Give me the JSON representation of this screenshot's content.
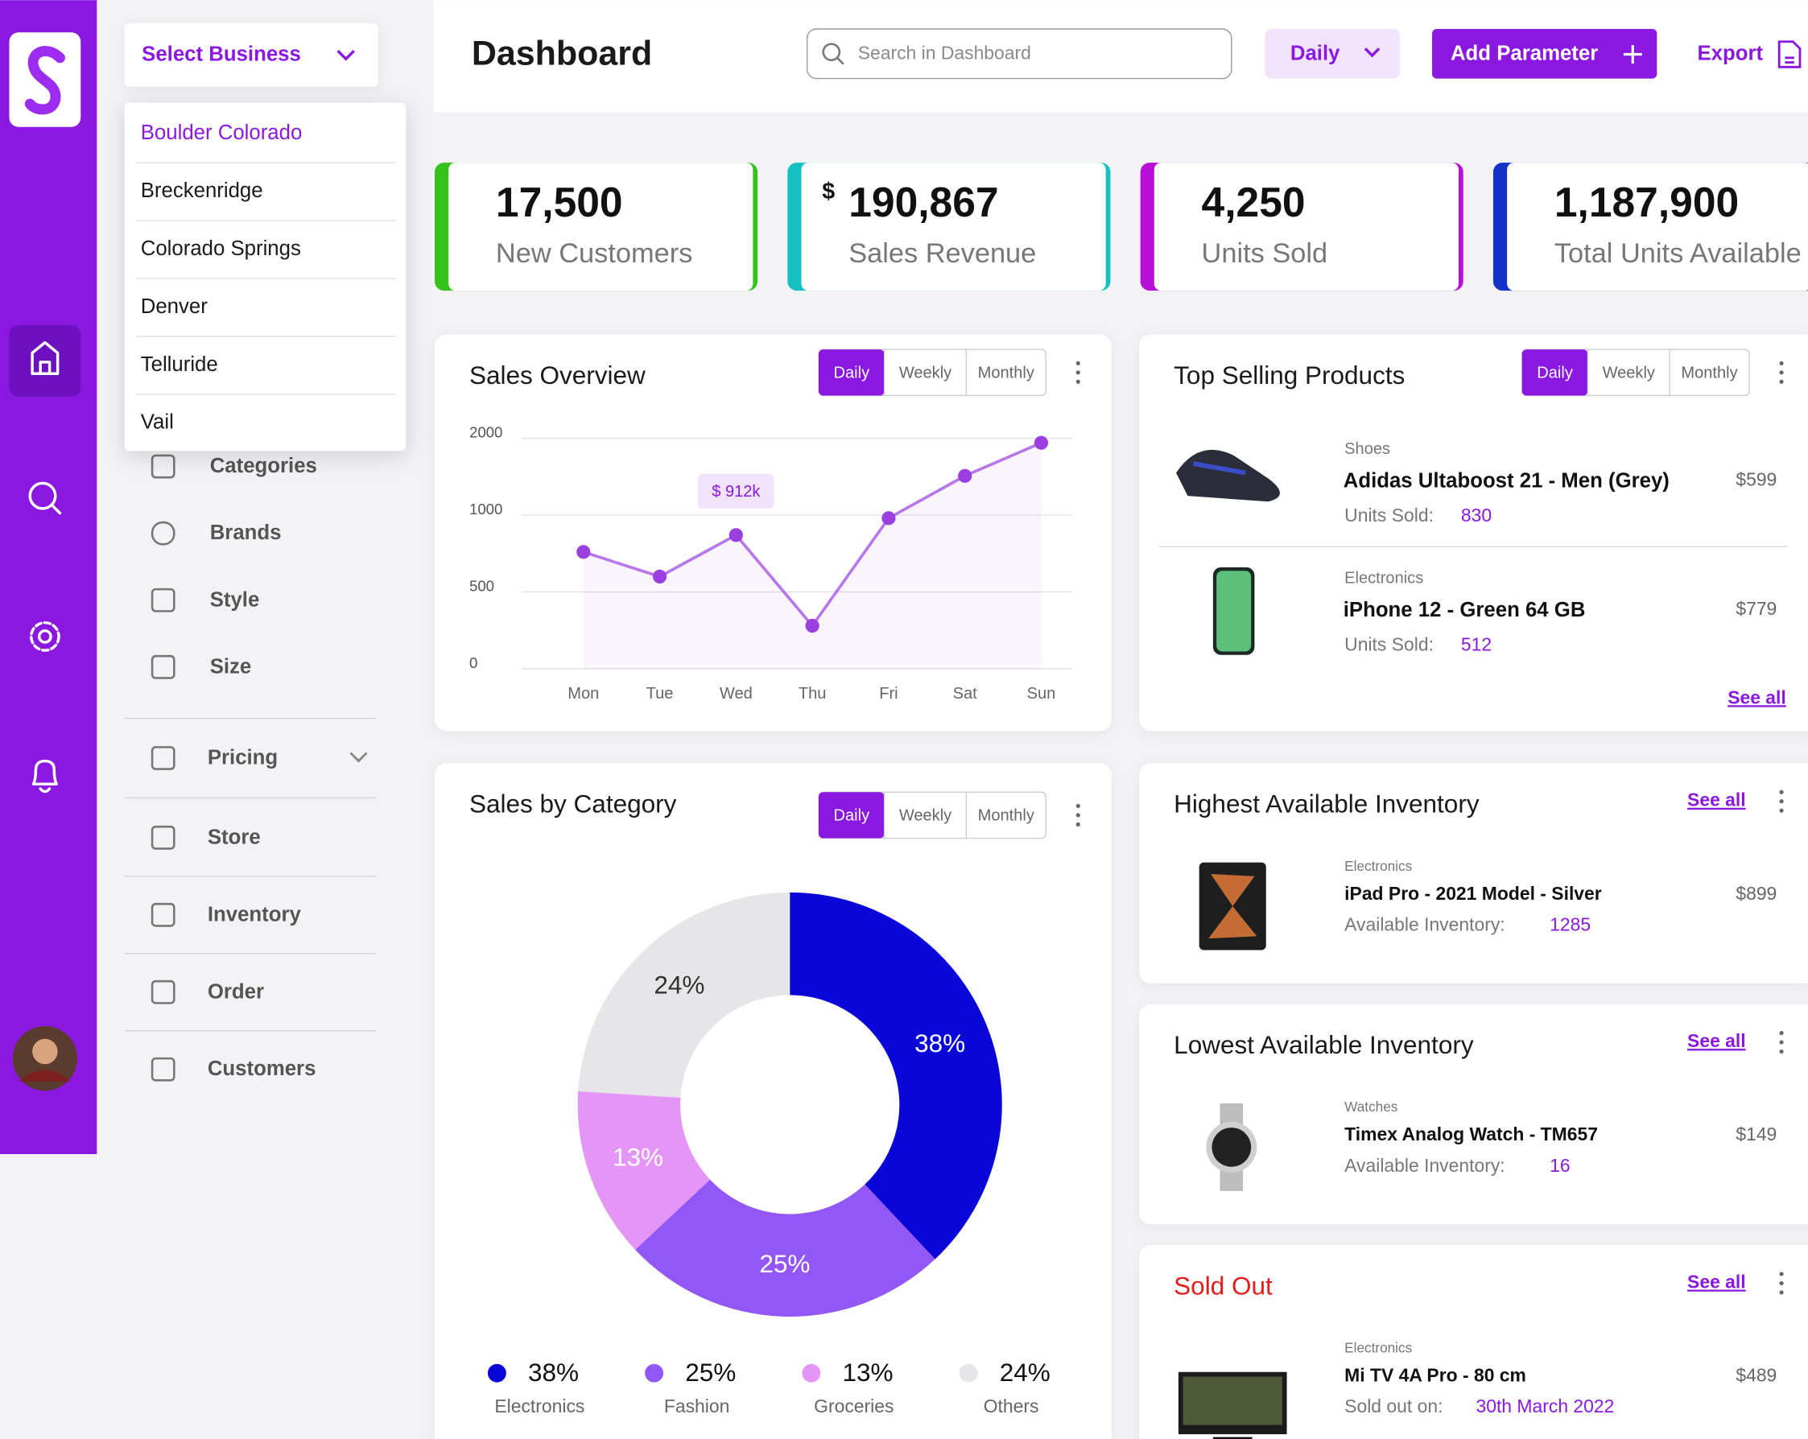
{
  "business_select": {
    "label": "Select Business",
    "options": [
      "Boulder Colorado",
      "Breckenridge",
      "Colorado Springs",
      "Denver",
      "Telluride",
      "Vail"
    ]
  },
  "sidebar": {
    "menu": [
      "Categories",
      "Brands",
      "Style",
      "Size",
      "Pricing",
      "Store",
      "Inventory",
      "Order",
      "Customers"
    ]
  },
  "header": {
    "title": "Dashboard",
    "search_placeholder": "Search in Dashboard",
    "period": "Daily",
    "add_button": "Add Parameter",
    "export": "Export"
  },
  "kpis": [
    {
      "value": "17,500",
      "label": "New Customers",
      "color": "#36c21c"
    },
    {
      "prefix": "$",
      "value": "190,867",
      "label": "Sales Revenue",
      "color": "#14c1c0"
    },
    {
      "value": "4,250",
      "label": "Units Sold",
      "color": "#b80fd6"
    },
    {
      "value": "1,187,900",
      "label": "Total Units Available",
      "color": "#1332c8"
    }
  ],
  "chart_data": [
    {
      "type": "line",
      "title": "Sales Overview",
      "tabs": [
        "Daily",
        "Weekly",
        "Monthly"
      ],
      "categories": [
        "Mon",
        "Tue",
        "Wed",
        "Thu",
        "Fri",
        "Sat",
        "Sun"
      ],
      "values": [
        760,
        600,
        870,
        280,
        980,
        1510,
        1940
      ],
      "color": "#9b3fe0",
      "ylim": [
        0,
        2000
      ],
      "yticks": [
        0,
        500,
        1000,
        2000
      ],
      "grid": true,
      "annotation": "$ 912k"
    },
    {
      "type": "pie",
      "title": "Sales by Category",
      "tabs": [
        "Daily",
        "Weekly",
        "Monthly"
      ],
      "categories": [
        "Electronics",
        "Fashion",
        "Groceries",
        "Others"
      ],
      "values": [
        38,
        25,
        13,
        24
      ],
      "value_labels": [
        "38%",
        "25%",
        "13%",
        "24%"
      ],
      "colors": [
        "#0a06d8",
        "#9356f7",
        "#e496f7",
        "#e6e6e8"
      ]
    }
  ],
  "top_selling": {
    "title": "Top Selling Products",
    "tabs": [
      "Daily",
      "Weekly",
      "Monthly"
    ],
    "see_all": "See all",
    "items": [
      {
        "category": "Shoes",
        "name": "Adidas Ultaboost 21 - Men (Grey)",
        "price": "$599",
        "metric_label": "Units Sold:",
        "metric": "830"
      },
      {
        "category": "Electronics",
        "name": "iPhone 12 - Green 64 GB",
        "price": "$779",
        "metric_label": "Units Sold:",
        "metric": "512"
      }
    ]
  },
  "inventory_cards": [
    {
      "title": "Highest Available Inventory",
      "see_all": "See all",
      "category": "Electronics",
      "name": "iPad Pro - 2021 Model - Silver",
      "price": "$899",
      "metric_label": "Available Inventory:",
      "metric": "1285"
    },
    {
      "title": "Lowest Available Inventory",
      "see_all": "See all",
      "category": "Watches",
      "name": "Timex Analog Watch - TM657",
      "price": "$149",
      "metric_label": "Available Inventory:",
      "metric": "16"
    },
    {
      "title": "Sold Out",
      "see_all": "See all",
      "category": "Electronics",
      "name": "Mi TV 4A Pro - 80 cm",
      "price": "$489",
      "metric_label": "Sold out on:",
      "metric": "30th March 2022"
    }
  ]
}
